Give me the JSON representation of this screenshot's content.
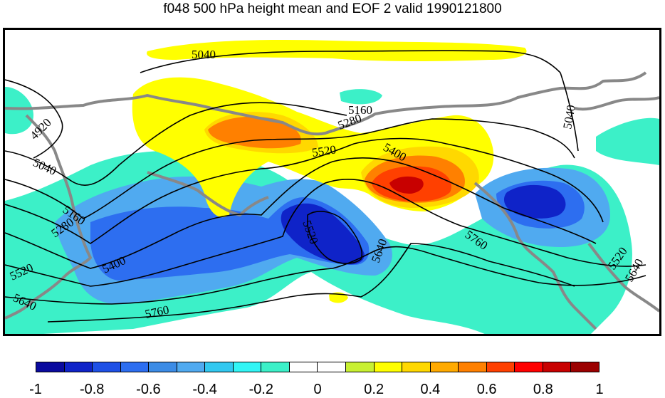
{
  "title": "f048 500 hPa height mean and EOF 2 valid 1990121800",
  "contour_labels": [
    "5040",
    "4920",
    "5160",
    "5280",
    "5400",
    "5520",
    "5640",
    "5760"
  ],
  "colorbar": {
    "colors": [
      "#0a0a9e",
      "#0f23c8",
      "#1e50e6",
      "#2d6ef0",
      "#3c8ce6",
      "#50aaf0",
      "#32c8f0",
      "#32f5f5",
      "#3cf0c8",
      "#ffffff",
      "#ffffff",
      "#c8f032",
      "#ffff00",
      "#ffd800",
      "#ffaa00",
      "#ff8000",
      "#ff4000",
      "#ff0000",
      "#c80000",
      "#9b0000"
    ],
    "tick_labels": [
      "-1",
      "-0.8",
      "-0.6",
      "-0.4",
      "-0.2",
      "0",
      "0.2",
      "0.4",
      "0.6",
      "0.8",
      "1"
    ]
  },
  "shading_colors": {
    "aqua": "#3cf0c8",
    "lightblue": "#50aaf0",
    "blue": "#2d6ef0",
    "darkblue": "#0f23c8",
    "yellow": "#ffff00",
    "gold": "#ffd800",
    "orange": "#ff8000",
    "red": "#ff4000",
    "darkred": "#c80000",
    "coast": "#888888"
  }
}
